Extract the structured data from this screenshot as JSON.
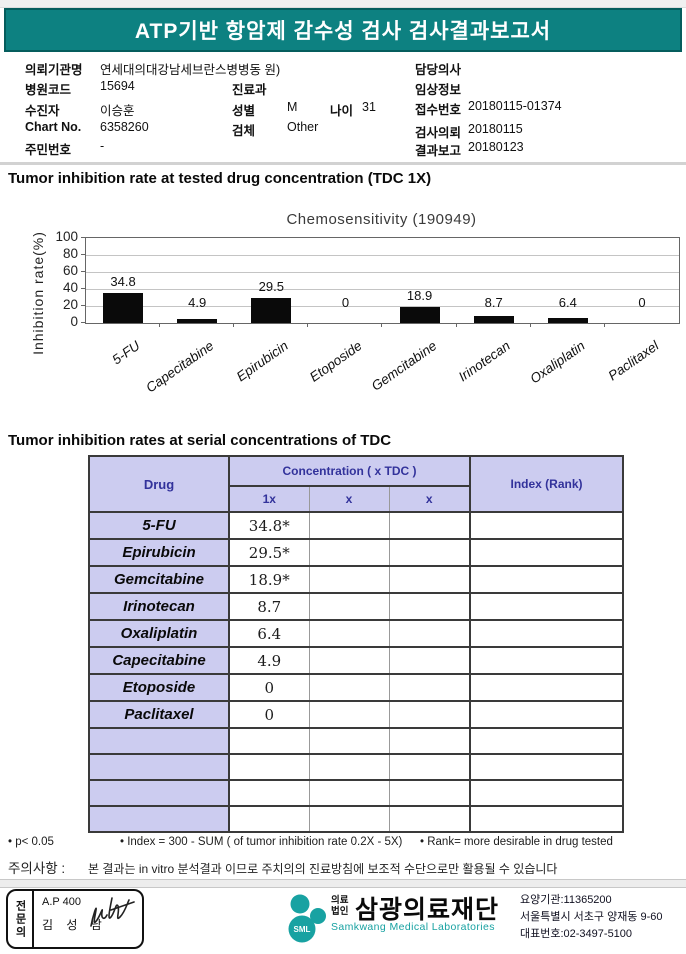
{
  "report": {
    "title": "ATP기반 항암제 감수성 검사 검사결과보고서"
  },
  "info": {
    "org_label": "의뢰기관명",
    "org": "연세대의대강남세브란스병병동 원)",
    "hosp_code_label": "병원코드",
    "hosp_code": "15694",
    "patient_label": "수진자",
    "patient": "이승훈",
    "chart_no_label": "Chart No.",
    "chart_no": "6358260",
    "resident_no_label": "주민번호",
    "resident_no": "-",
    "dept_label": "진료과",
    "sex_label": "성별",
    "sex": "M",
    "age_label": "나이",
    "age": "31",
    "specimen_label": "검체",
    "specimen": "Other",
    "doctor_label": "담당의사",
    "clinical_label": "임상정보",
    "receipt_no_label": "접수번호",
    "receipt_no": "20180115-01374",
    "request_date_label": "검사의뢰",
    "request_date": "20180115",
    "report_date_label": "결과보고",
    "report_date": "20180123"
  },
  "sections": {
    "chart_section_title": "Tumor inhibition rate at tested drug concentration (TDC 1X)",
    "table_section_title": "Tumor inhibition rates at serial concentrations of TDC"
  },
  "chart_data": {
    "type": "bar",
    "title": "Chemosensitivity (190949)",
    "ylabel": "Inhibition rate(%)",
    "categories": [
      "5-FU",
      "Capecitabine",
      "Epirubicin",
      "Etoposide",
      "Gemcitabine",
      "Irinotecan",
      "Oxaliplatin",
      "Paclitaxel"
    ],
    "values": [
      34.8,
      4.9,
      29.5,
      0,
      18.9,
      8.7,
      6.4,
      0
    ],
    "value_labels": [
      "34.8",
      "4.9",
      "29.5",
      "0",
      "18.9",
      "8.7",
      "6.4",
      "0"
    ],
    "ylim": [
      0,
      100
    ],
    "yticks": [
      100,
      80,
      60,
      40,
      20,
      0
    ],
    "ytick_labels": [
      "100",
      "80",
      "60",
      "40",
      "20",
      "0"
    ],
    "grid": true,
    "bar_color": "#0a0a0a",
    "legend": "none"
  },
  "results_table": {
    "header": {
      "drug": "Drug",
      "concentration": "Concentration ( x TDC )",
      "c1": "1x",
      "c2": "x",
      "c3": "x",
      "index": "Index (Rank)"
    },
    "rows": [
      {
        "drug": "5-FU",
        "v1": "34.8*",
        "v2": "",
        "v3": "",
        "index": ""
      },
      {
        "drug": "Epirubicin",
        "v1": "29.5*",
        "v2": "",
        "v3": "",
        "index": ""
      },
      {
        "drug": "Gemcitabine",
        "v1": "18.9*",
        "v2": "",
        "v3": "",
        "index": ""
      },
      {
        "drug": "Irinotecan",
        "v1": "8.7",
        "v2": "",
        "v3": "",
        "index": ""
      },
      {
        "drug": "Oxaliplatin",
        "v1": "6.4",
        "v2": "",
        "v3": "",
        "index": ""
      },
      {
        "drug": "Capecitabine",
        "v1": "4.9",
        "v2": "",
        "v3": "",
        "index": ""
      },
      {
        "drug": "Etoposide",
        "v1": "0",
        "v2": "",
        "v3": "",
        "index": ""
      },
      {
        "drug": "Paclitaxel",
        "v1": "0",
        "v2": "",
        "v3": "",
        "index": ""
      },
      {
        "drug": "",
        "v1": "",
        "v2": "",
        "v3": "",
        "index": ""
      },
      {
        "drug": "",
        "v1": "",
        "v2": "",
        "v3": "",
        "index": ""
      },
      {
        "drug": "",
        "v1": "",
        "v2": "",
        "v3": "",
        "index": ""
      },
      {
        "drug": "",
        "v1": "",
        "v2": "",
        "v3": "",
        "index": ""
      }
    ]
  },
  "footnotes": {
    "f1": "• p< 0.05",
    "f2": "• Index = 300 - SUM ( of tumor inhibition rate 0.2X  -  5X)",
    "f3": "• Rank= more desirable in drug tested",
    "notice_label": "주의사항 :",
    "notice": "본 결과는 in vitro 분석결과 이므로 주치의의 진료방침에 보조적 수단으로만 활용될 수 있습니다"
  },
  "footer": {
    "sign_role": "전문의",
    "sign_code": "A.P 400",
    "sign_name": "김 성 남",
    "logo_text": "SML",
    "logo_prefix1": "의료",
    "logo_prefix2": "법인",
    "org_name": "삼광의료재단",
    "org_name_en": "Samkwang Medical Laboratories",
    "contact1": "요양기관:11365200",
    "contact2": "서울특별시 서초구 양재동 9-60",
    "contact3": "대표번호:02-3497-5100"
  },
  "colors": {
    "band_teal": "#0d8181",
    "band_border": "#055d5d",
    "logo_teal": "#18a2a2",
    "table_header_bg": "#ccccf0",
    "table_header_text": "#32329b",
    "bar_color": "#0a0a0a"
  }
}
